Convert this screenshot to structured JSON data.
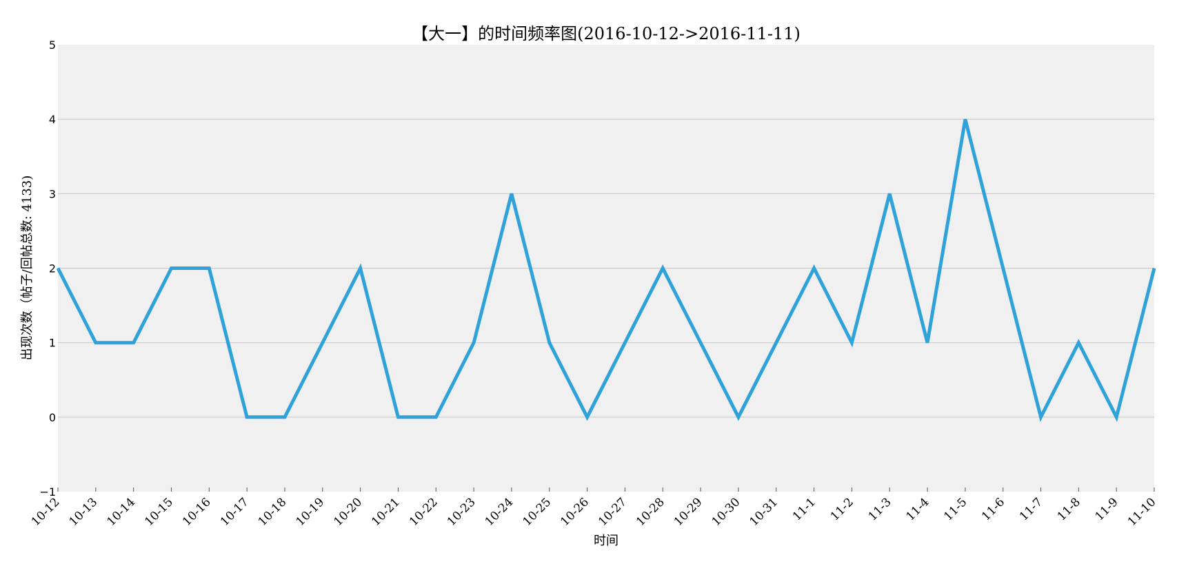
{
  "chart_data": {
    "type": "line",
    "title": "【大一】的时间频率图(2016-10-12->2016-11-11)",
    "xlabel": "时间",
    "ylabel": "出现次数（帖子/回帖总数: 4133)",
    "categories": [
      "10-12",
      "10-13",
      "10-14",
      "10-15",
      "10-16",
      "10-17",
      "10-18",
      "10-19",
      "10-20",
      "10-21",
      "10-22",
      "10-23",
      "10-24",
      "10-25",
      "10-26",
      "10-27",
      "10-28",
      "10-29",
      "10-30",
      "10-31",
      "11-1",
      "11-2",
      "11-3",
      "11-4",
      "11-5",
      "11-6",
      "11-7",
      "11-8",
      "11-9",
      "11-10"
    ],
    "series": [
      {
        "values": [
          2,
          1,
          1,
          2,
          2,
          0,
          0,
          1,
          2,
          0,
          0,
          1,
          3,
          1,
          0,
          1,
          2,
          1,
          0,
          1,
          2,
          1,
          3,
          1,
          4,
          2,
          0,
          1,
          0,
          2
        ]
      }
    ],
    "ylim": [
      -1,
      5
    ],
    "yticks": [
      -1,
      0,
      1,
      2,
      3,
      4,
      5
    ],
    "grid": "y",
    "colors": {
      "line": "#30a2da",
      "plot_background": "#f0f0f0",
      "grid": "#cbcbcb"
    }
  }
}
